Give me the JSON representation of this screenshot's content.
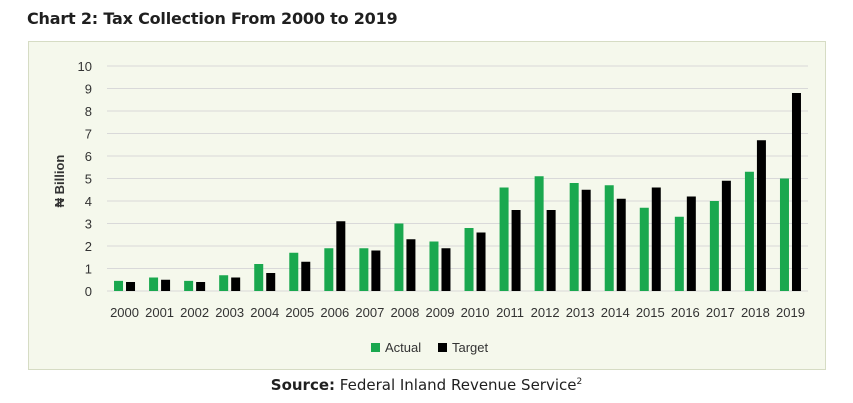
{
  "header": {
    "title": "Chart 2: Tax Collection From 2000 to 2019"
  },
  "footer": {
    "source_label": "Source:",
    "source_text": "Federal Inland Revenue Service",
    "source_note": "2"
  },
  "chart_data": {
    "type": "bar",
    "title": "Chart 2: Tax Collection From 2000 to 2019",
    "xlabel": "",
    "ylabel": "₦ Billion",
    "ylim": [
      0,
      10
    ],
    "yticks": [
      0,
      1,
      2,
      3,
      4,
      5,
      6,
      7,
      8,
      9,
      10
    ],
    "grid": true,
    "legend": "bottom-center",
    "categories": [
      "2000",
      "2001",
      "2002",
      "2003",
      "2004",
      "2005",
      "2006",
      "2007",
      "2008",
      "2009",
      "2010",
      "2011",
      "2012",
      "2013",
      "2014",
      "2015",
      "2016",
      "2017",
      "2018",
      "2019"
    ],
    "series": [
      {
        "name": "Actual",
        "color": "#1aa84f",
        "values": [
          0.45,
          0.6,
          0.45,
          0.7,
          1.2,
          1.7,
          1.9,
          1.9,
          3.0,
          2.2,
          2.8,
          4.6,
          5.1,
          4.8,
          4.7,
          3.7,
          3.3,
          4.0,
          5.3,
          5.0
        ]
      },
      {
        "name": "Target",
        "color": "#000000",
        "values": [
          0.4,
          0.5,
          0.4,
          0.6,
          0.8,
          1.3,
          3.1,
          1.8,
          2.3,
          1.9,
          2.6,
          3.6,
          3.6,
          4.5,
          4.1,
          4.6,
          4.2,
          4.9,
          6.7,
          8.8
        ]
      }
    ]
  }
}
